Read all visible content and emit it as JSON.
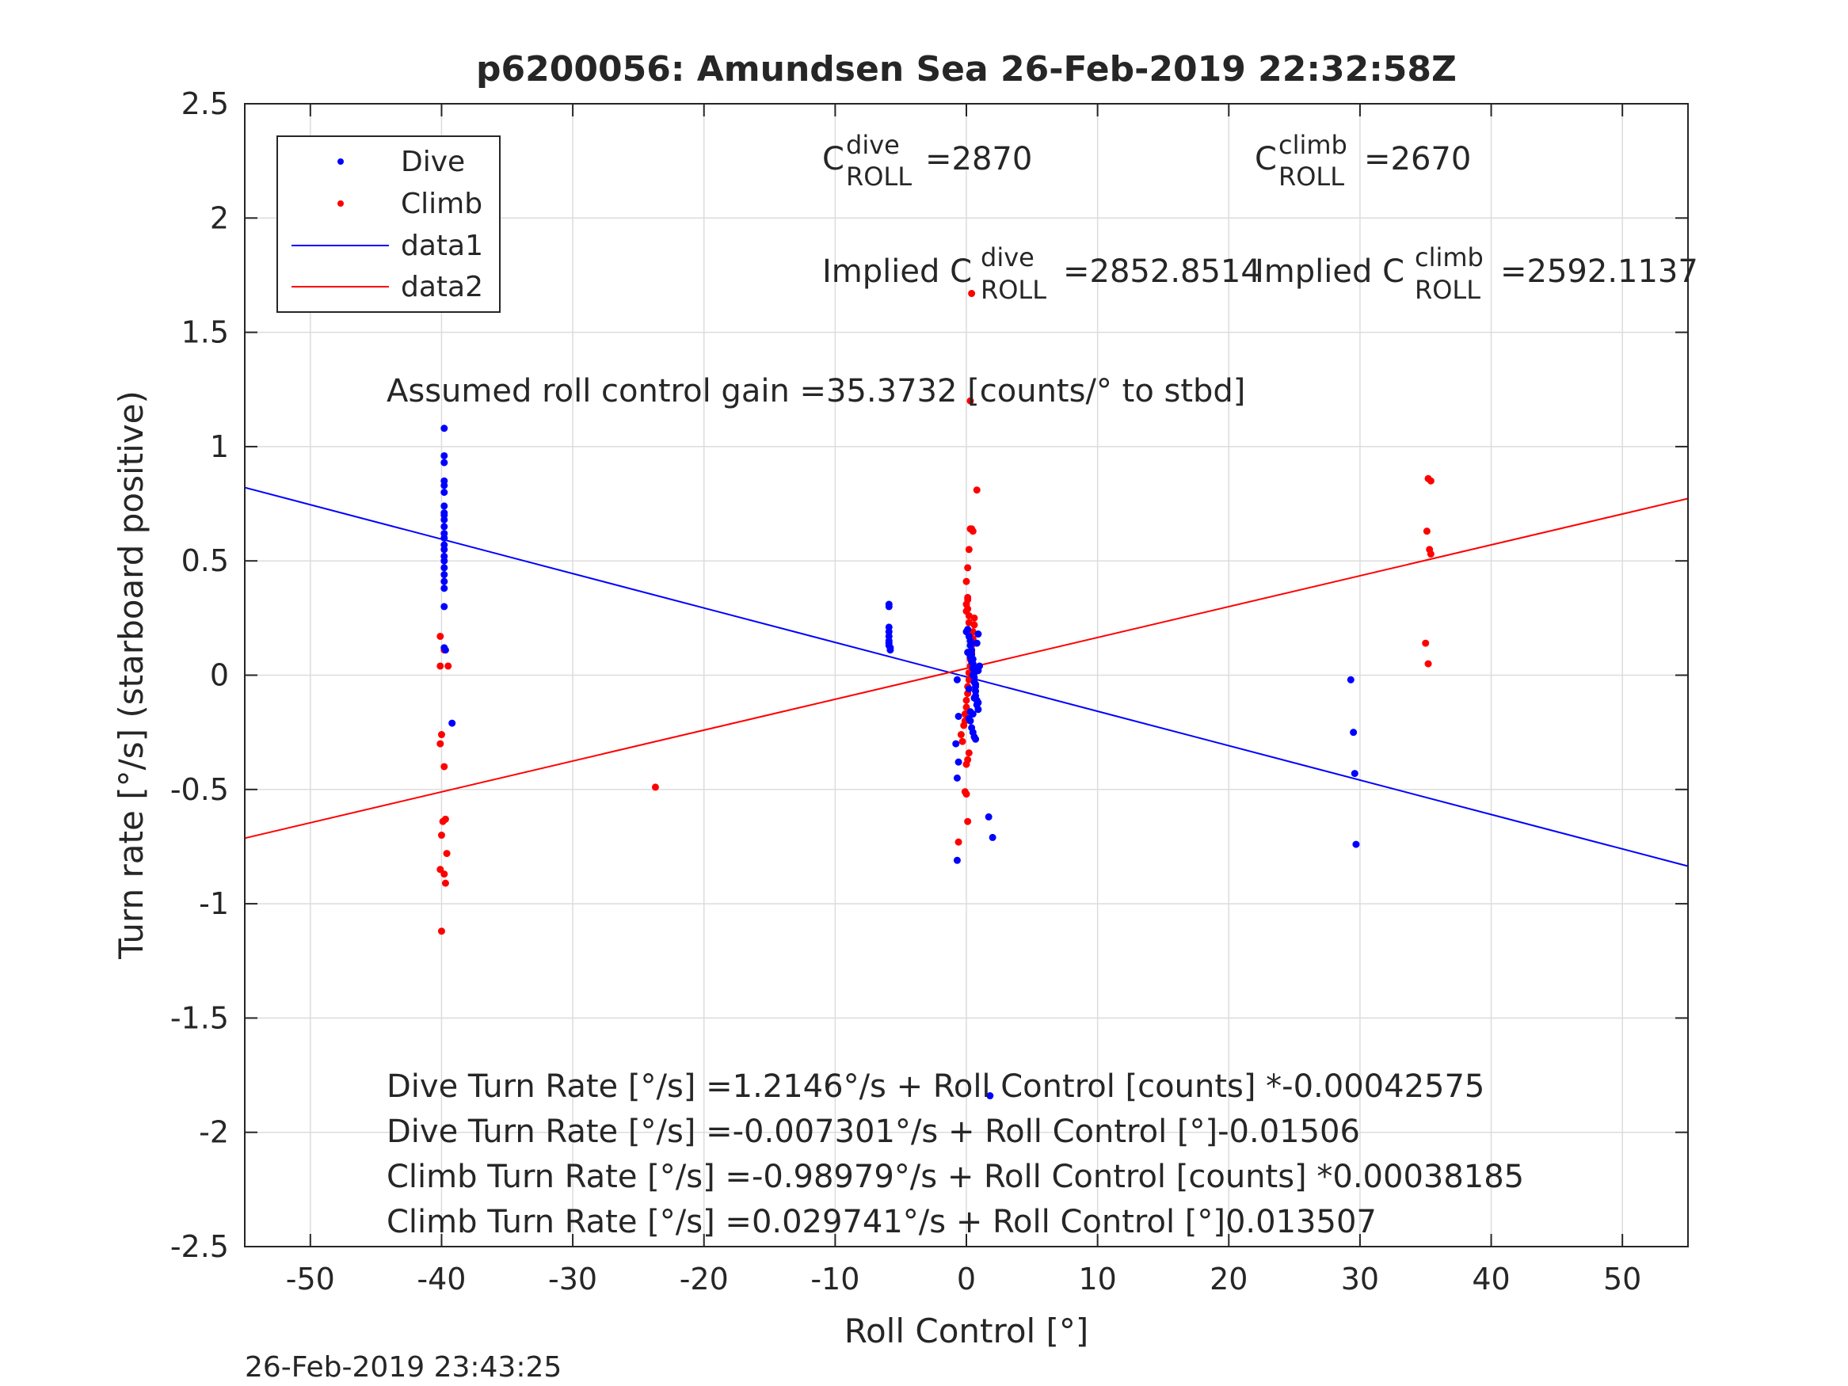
{
  "chart_data": {
    "type": "scatter",
    "title": "p6200056: Amundsen Sea 26-Feb-2019 22:32:58Z",
    "xlabel": "Roll Control [°]",
    "ylabel": "Turn rate [°/s] (starboard positive)",
    "xlim": [
      -55,
      55
    ],
    "ylim": [
      -2.5,
      2.5
    ],
    "grid": true,
    "legend_location": "top-left",
    "xticks": [
      "-50",
      "-40",
      "-30",
      "-20",
      "-10",
      "0",
      "10",
      "20",
      "30",
      "40",
      "50"
    ],
    "yticks": [
      "2.5",
      "2",
      "1.5",
      "1",
      "0.5",
      "0",
      "-0.5",
      "-1",
      "-1.5",
      "-2",
      "-2.5"
    ],
    "timestamp": "26-Feb-2019 23:43:25",
    "series": [
      {
        "name": "Dive",
        "kind": "points",
        "color": "#0000ff",
        "x": [
          -39.8,
          -39.8,
          -39.8,
          -39.8,
          -39.8,
          -39.8,
          -39.8,
          -39.8,
          -39.8,
          -39.8,
          -39.8,
          -39.8,
          -39.8,
          -39.8,
          -39.8,
          -39.8,
          -39.8,
          -39.8,
          -39.8,
          -39.8,
          -39.8,
          -39.8,
          -39.8,
          -39.7,
          -39.2,
          -5.9,
          -5.9,
          -5.9,
          -5.9,
          -5.9,
          -5.9,
          -5.9,
          -5.9,
          -5.8,
          -5.8,
          -0.7,
          -0.7,
          -0.6,
          -0.8,
          -0.6,
          -0.7,
          0.0,
          0.1,
          0.2,
          0.3,
          0.3,
          0.4,
          0.4,
          0.5,
          0.5,
          0.5,
          0.6,
          0.6,
          0.6,
          0.7,
          0.7,
          0.7,
          0.8,
          0.8,
          0.9,
          0.9,
          0.9,
          1.0,
          0.2,
          0.3,
          0.4,
          0.5,
          0.6,
          0.7,
          0.3,
          0.5,
          0.7,
          0.1,
          0.2,
          0.4,
          0.6,
          0.8,
          0.3,
          0.5,
          0.9,
          1.7,
          2.0,
          1.8,
          29.3,
          29.5,
          29.6,
          29.7
        ],
        "y": [
          1.08,
          0.96,
          0.93,
          0.85,
          0.83,
          0.8,
          0.74,
          0.71,
          0.7,
          0.68,
          0.65,
          0.62,
          0.6,
          0.57,
          0.55,
          0.52,
          0.5,
          0.47,
          0.44,
          0.41,
          0.38,
          0.3,
          0.12,
          0.11,
          -0.21,
          0.31,
          0.3,
          0.21,
          0.19,
          0.17,
          0.15,
          0.14,
          0.13,
          0.12,
          0.11,
          -0.81,
          -0.45,
          -0.38,
          -0.3,
          -0.18,
          -0.02,
          0.19,
          0.2,
          0.17,
          0.15,
          0.13,
          0.11,
          0.09,
          0.07,
          0.05,
          0.03,
          0.01,
          -0.01,
          -0.03,
          -0.05,
          -0.07,
          -0.09,
          -0.11,
          -0.13,
          -0.15,
          -0.12,
          0.02,
          0.04,
          -0.19,
          -0.2,
          -0.23,
          -0.25,
          -0.27,
          -0.28,
          0.08,
          0.0,
          -0.04,
          0.1,
          -0.06,
          0.06,
          -0.1,
          0.14,
          -0.16,
          -0.17,
          0.18,
          -0.62,
          -0.71,
          -1.84,
          -0.02,
          -0.25,
          -0.43,
          -0.74
        ]
      },
      {
        "name": "Climb",
        "kind": "points",
        "color": "#ff0000",
        "x": [
          -40.1,
          -39.8,
          -39.5,
          -40.1,
          -40.0,
          -40.1,
          -39.8,
          -39.7,
          -39.9,
          -40.0,
          -39.6,
          -40.1,
          -39.8,
          -39.7,
          -40.0,
          -23.7,
          -0.6,
          -0.4,
          -0.3,
          -0.2,
          -0.1,
          -0.1,
          0.0,
          0.0,
          0.1,
          0.1,
          0.2,
          0.2,
          0.3,
          0.3,
          0.4,
          0.4,
          0.5,
          0.5,
          0.6,
          0.6,
          0.0,
          0.0,
          0.1,
          0.1,
          0.2,
          0.2,
          0.1,
          0.2,
          0.3,
          0.4,
          0.5,
          0.8,
          0.3,
          0.4,
          0.0,
          0.1,
          0.2,
          -0.1,
          0.0,
          0.1,
          0.0,
          0.1,
          0.2,
          35.2,
          35.4,
          35.1,
          35.3,
          35.4,
          35.0,
          35.2
        ],
        "y": [
          0.17,
          0.11,
          0.04,
          0.04,
          -0.26,
          -0.3,
          -0.4,
          -0.63,
          -0.64,
          -0.7,
          -0.78,
          -0.85,
          -0.87,
          -0.91,
          -1.12,
          -0.49,
          -0.73,
          -0.26,
          -0.29,
          -0.22,
          -0.2,
          -0.17,
          -0.14,
          -0.11,
          -0.08,
          -0.05,
          -0.02,
          0.01,
          0.04,
          0.07,
          0.1,
          0.13,
          0.16,
          0.19,
          0.22,
          0.25,
          0.28,
          0.31,
          0.34,
          0.29,
          0.23,
          0.18,
          0.47,
          0.55,
          0.64,
          0.64,
          0.63,
          0.81,
          1.2,
          1.67,
          -0.39,
          -0.37,
          -0.34,
          -0.51,
          -0.52,
          -0.64,
          0.41,
          0.33,
          0.26,
          0.86,
          0.85,
          0.63,
          0.55,
          0.53,
          0.14,
          0.05
        ]
      },
      {
        "name": "data1",
        "kind": "line",
        "color": "#0000ff",
        "x": [
          -55,
          55
        ],
        "y": [
          0.821,
          -0.8355
        ]
      },
      {
        "name": "data2",
        "kind": "line",
        "color": "#ff0000",
        "x": [
          -55,
          55
        ],
        "y": [
          -0.7132,
          0.7727
        ]
      }
    ],
    "annotations": {
      "c_dive": "=2870",
      "c_climb": "=2670",
      "implied_label": "Implied C",
      "implied_dive": "=2852.8514",
      "implied_climb": "=2592.1137",
      "c_main": "C",
      "roll_sub": "ROLL",
      "dive_sup": "dive",
      "climb_sup": "climb",
      "gain": "Assumed roll control gain =35.3732 [counts/° to stbd]",
      "eq1": "Dive Turn Rate [°/s] =1.2146°/s + Roll Control [counts] *-0.00042575",
      "eq2": "Dive Turn Rate [°/s] =-0.007301°/s + Roll Control [°]-0.01506",
      "eq3": "Climb Turn Rate [°/s] =-0.98979°/s + Roll Control [counts] *0.00038185",
      "eq4": "Climb Turn Rate [°/s] =0.029741°/s + Roll Control [°]0.013507"
    }
  }
}
